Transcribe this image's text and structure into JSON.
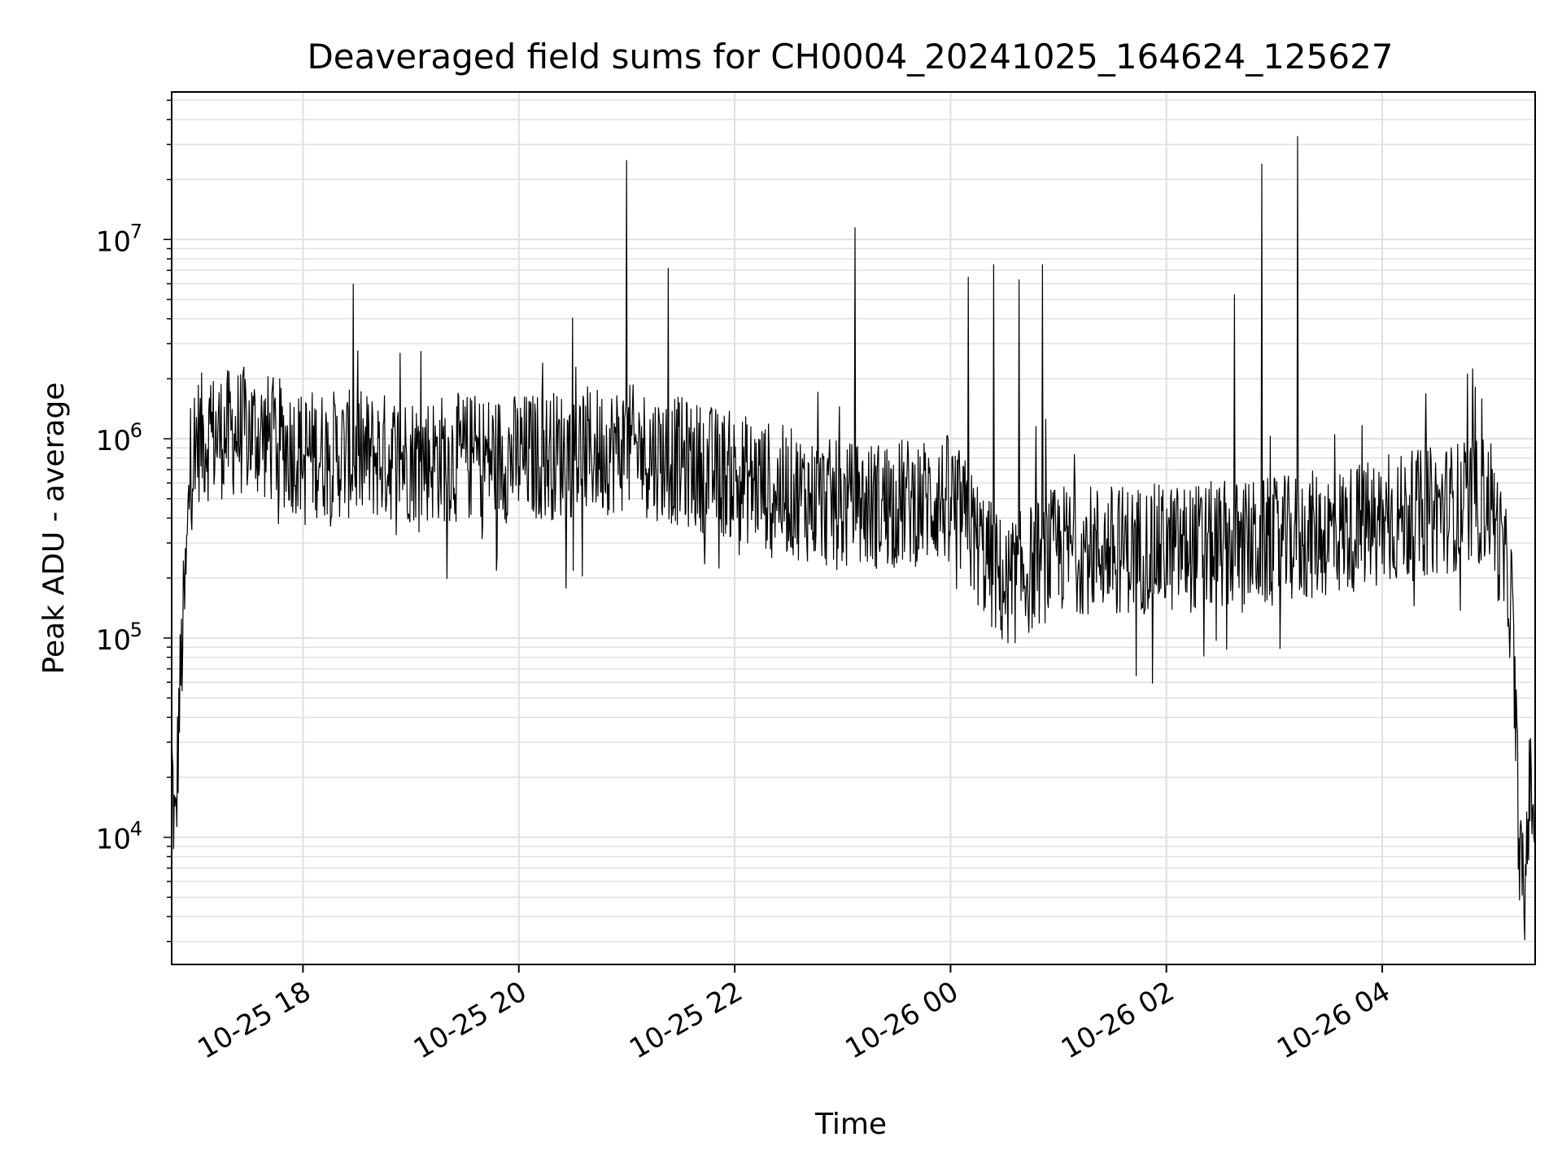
{
  "chart_data": {
    "type": "line",
    "title": "Deaveraged field sums for CH0004_20241025_164624_125627",
    "xlabel": "Time",
    "ylabel": "Peak ADU - average",
    "yscale": "log",
    "xlim": [
      "2024-10-25T16:47",
      "2024-10-26T05:25"
    ],
    "ylim": [
      2300,
      55000000
    ],
    "grid": true,
    "grid_minor": true,
    "line_color": "#000000",
    "grid_color": "#e0e0e0",
    "x_ticks": [
      {
        "value": "2024-10-25T18:00",
        "label": "10-25 18"
      },
      {
        "value": "2024-10-25T20:00",
        "label": "10-25 20"
      },
      {
        "value": "2024-10-25T22:00",
        "label": "10-25 22"
      },
      {
        "value": "2024-10-26T00:00",
        "label": "10-26 00"
      },
      {
        "value": "2024-10-26T02:00",
        "label": "10-26 02"
      },
      {
        "value": "2024-10-26T04:00",
        "label": "10-26 04"
      }
    ],
    "y_ticks": [
      {
        "value": 10000,
        "base": "10",
        "exp": "4"
      },
      {
        "value": 100000,
        "base": "10",
        "exp": "5"
      },
      {
        "value": 1000000,
        "base": "10",
        "exp": "6"
      },
      {
        "value": 10000000,
        "base": "10",
        "exp": "7"
      }
    ],
    "series": [
      {
        "values": [
          {
            "x": "2024-10-25T16:47",
            "y": 25000
          },
          {
            "x": "2024-10-25T16:49",
            "y": 9000
          },
          {
            "x": "2024-10-25T16:51",
            "y": 40000
          },
          {
            "x": "2024-10-25T16:53",
            "y": 100000
          },
          {
            "x": "2024-10-25T16:55",
            "y": 200000
          },
          {
            "x": "2024-10-25T16:57",
            "y": 600000
          },
          {
            "x": "2024-10-25T17:00",
            "y": 1000000
          },
          {
            "x": "2024-10-25T17:30",
            "y": 1100000
          },
          {
            "x": "2024-10-25T18:00",
            "y": 850000
          },
          {
            "x": "2024-10-25T19:00",
            "y": 800000
          },
          {
            "x": "2024-10-25T20:00",
            "y": 800000
          },
          {
            "x": "2024-10-25T21:00",
            "y": 900000
          },
          {
            "x": "2024-10-25T22:00",
            "y": 650000
          },
          {
            "x": "2024-10-25T23:00",
            "y": 450000
          },
          {
            "x": "2024-10-26T00:00",
            "y": 500000
          },
          {
            "x": "2024-10-26T00:30",
            "y": 180000
          },
          {
            "x": "2024-10-26T01:00",
            "y": 280000
          },
          {
            "x": "2024-10-26T02:00",
            "y": 280000
          },
          {
            "x": "2024-10-26T03:00",
            "y": 300000
          },
          {
            "x": "2024-10-26T04:00",
            "y": 380000
          },
          {
            "x": "2024-10-26T05:00",
            "y": 500000
          },
          {
            "x": "2024-10-26T05:12",
            "y": 150000
          },
          {
            "x": "2024-10-26T05:15",
            "y": 20000
          },
          {
            "x": "2024-10-26T05:17",
            "y": 7000
          },
          {
            "x": "2024-10-26T05:19",
            "y": 4000
          },
          {
            "x": "2024-10-26T05:21",
            "y": 15000
          },
          {
            "x": "2024-10-26T05:25",
            "y": 18000
          }
        ],
        "peaks": [
          {
            "x": "2024-10-25T21:00",
            "y": 25000000
          },
          {
            "x": "2024-10-25T23:07",
            "y": 11500000
          },
          {
            "x": "2024-10-26T02:53",
            "y": 24000000
          },
          {
            "x": "2024-10-26T03:13",
            "y": 33000000
          },
          {
            "x": "2024-10-25T21:23",
            "y": 7200000
          },
          {
            "x": "2024-10-26T00:10",
            "y": 6500000
          },
          {
            "x": "2024-10-26T00:24",
            "y": 7500000
          },
          {
            "x": "2024-10-26T00:38",
            "y": 6300000
          },
          {
            "x": "2024-10-26T00:51",
            "y": 7500000
          },
          {
            "x": "2024-10-25T18:28",
            "y": 6000000
          },
          {
            "x": "2024-10-26T02:38",
            "y": 5300000
          }
        ]
      }
    ]
  }
}
